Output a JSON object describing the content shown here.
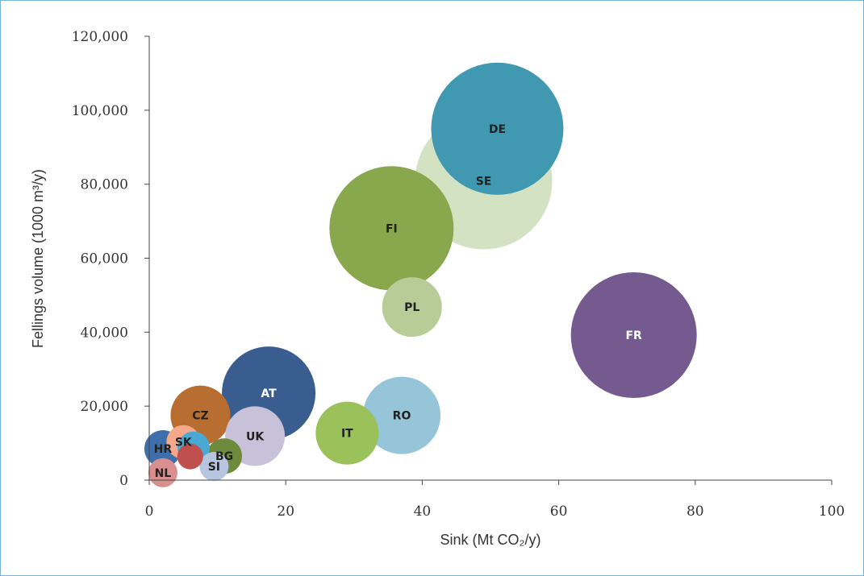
{
  "chart_data": {
    "type": "bubble",
    "xlabel": "Sink (Mt CO₂/y)",
    "ylabel": "Fellings volume (1000 m³/y)",
    "xlim": [
      0,
      100
    ],
    "ylim": [
      0,
      120000
    ],
    "xticks": [
      0,
      20,
      40,
      60,
      80,
      100
    ],
    "yticks": [
      0,
      20000,
      40000,
      60000,
      80000,
      100000,
      120000
    ],
    "xtick_labels": [
      "0",
      "20",
      "40",
      "60",
      "80",
      "100"
    ],
    "ytick_labels": [
      "0",
      "20,000",
      "40,000",
      "60,000",
      "80,000",
      "100,000",
      "120,000"
    ],
    "grid": false,
    "legend": "none",
    "points": [
      {
        "label": "DE",
        "x": 51.0,
        "y": 95000,
        "size": 82,
        "color": "#4199b1",
        "label_color": "dark"
      },
      {
        "label": "FR",
        "x": 71.0,
        "y": 39200,
        "size": 78,
        "color": "#745a8e",
        "label_color": "light"
      },
      {
        "label": "SE",
        "x": 49.0,
        "y": 80900,
        "size": 85,
        "color": "#d4e2c4",
        "label_color": "dark"
      },
      {
        "label": "FI",
        "x": 35.5,
        "y": 68100,
        "size": 77,
        "color": "#89a74d",
        "label_color": "dark"
      },
      {
        "label": "PL",
        "x": 38.5,
        "y": 46800,
        "size": 37,
        "color": "#b8cc97",
        "label_color": "dark"
      },
      {
        "label": "AT",
        "x": 17.5,
        "y": 23500,
        "size": 58,
        "color": "#3a5d8f",
        "label_color": "light"
      },
      {
        "label": "RO",
        "x": 37.0,
        "y": 17500,
        "size": 48,
        "color": "#96c4d8",
        "label_color": "dark"
      },
      {
        "label": "IT",
        "x": 29.0,
        "y": 12700,
        "size": 39,
        "color": "#9bc25a",
        "label_color": "dark"
      },
      {
        "label": "CZ",
        "x": 7.5,
        "y": 17500,
        "size": 37,
        "color": "#b86e30",
        "label_color": "dark"
      },
      {
        "label": "UK",
        "x": 15.5,
        "y": 11900,
        "size": 37,
        "color": "#c8c1da",
        "label_color": "dark"
      },
      {
        "label": "BG",
        "x": 11.0,
        "y": 6500,
        "size": 22,
        "color": "#6e8b3d",
        "label_color": "dark"
      },
      {
        "label": "",
        "x": 6.0,
        "y": 6400,
        "size": 16,
        "color": "#c0504d",
        "label_color": "dark"
      },
      {
        "label": "HR",
        "x": 2.0,
        "y": 8500,
        "size": 23,
        "color": "#3f6fab",
        "label_color": "dark"
      },
      {
        "label": "",
        "x": 6.5,
        "y": 8800,
        "size": 20,
        "color": "#4aa9d2",
        "label_color": "dark"
      },
      {
        "label": "SK",
        "x": 5.0,
        "y": 10300,
        "size": 21,
        "color": "#f5a98a",
        "label_color": "dark"
      },
      {
        "label": "SI",
        "x": 9.5,
        "y": 3700,
        "size": 18,
        "color": "#b7c5df",
        "label_color": "dark"
      },
      {
        "label": "NL",
        "x": 2.0,
        "y": 2000,
        "size": 18,
        "color": "#d98f8d",
        "label_color": "dark"
      }
    ]
  }
}
